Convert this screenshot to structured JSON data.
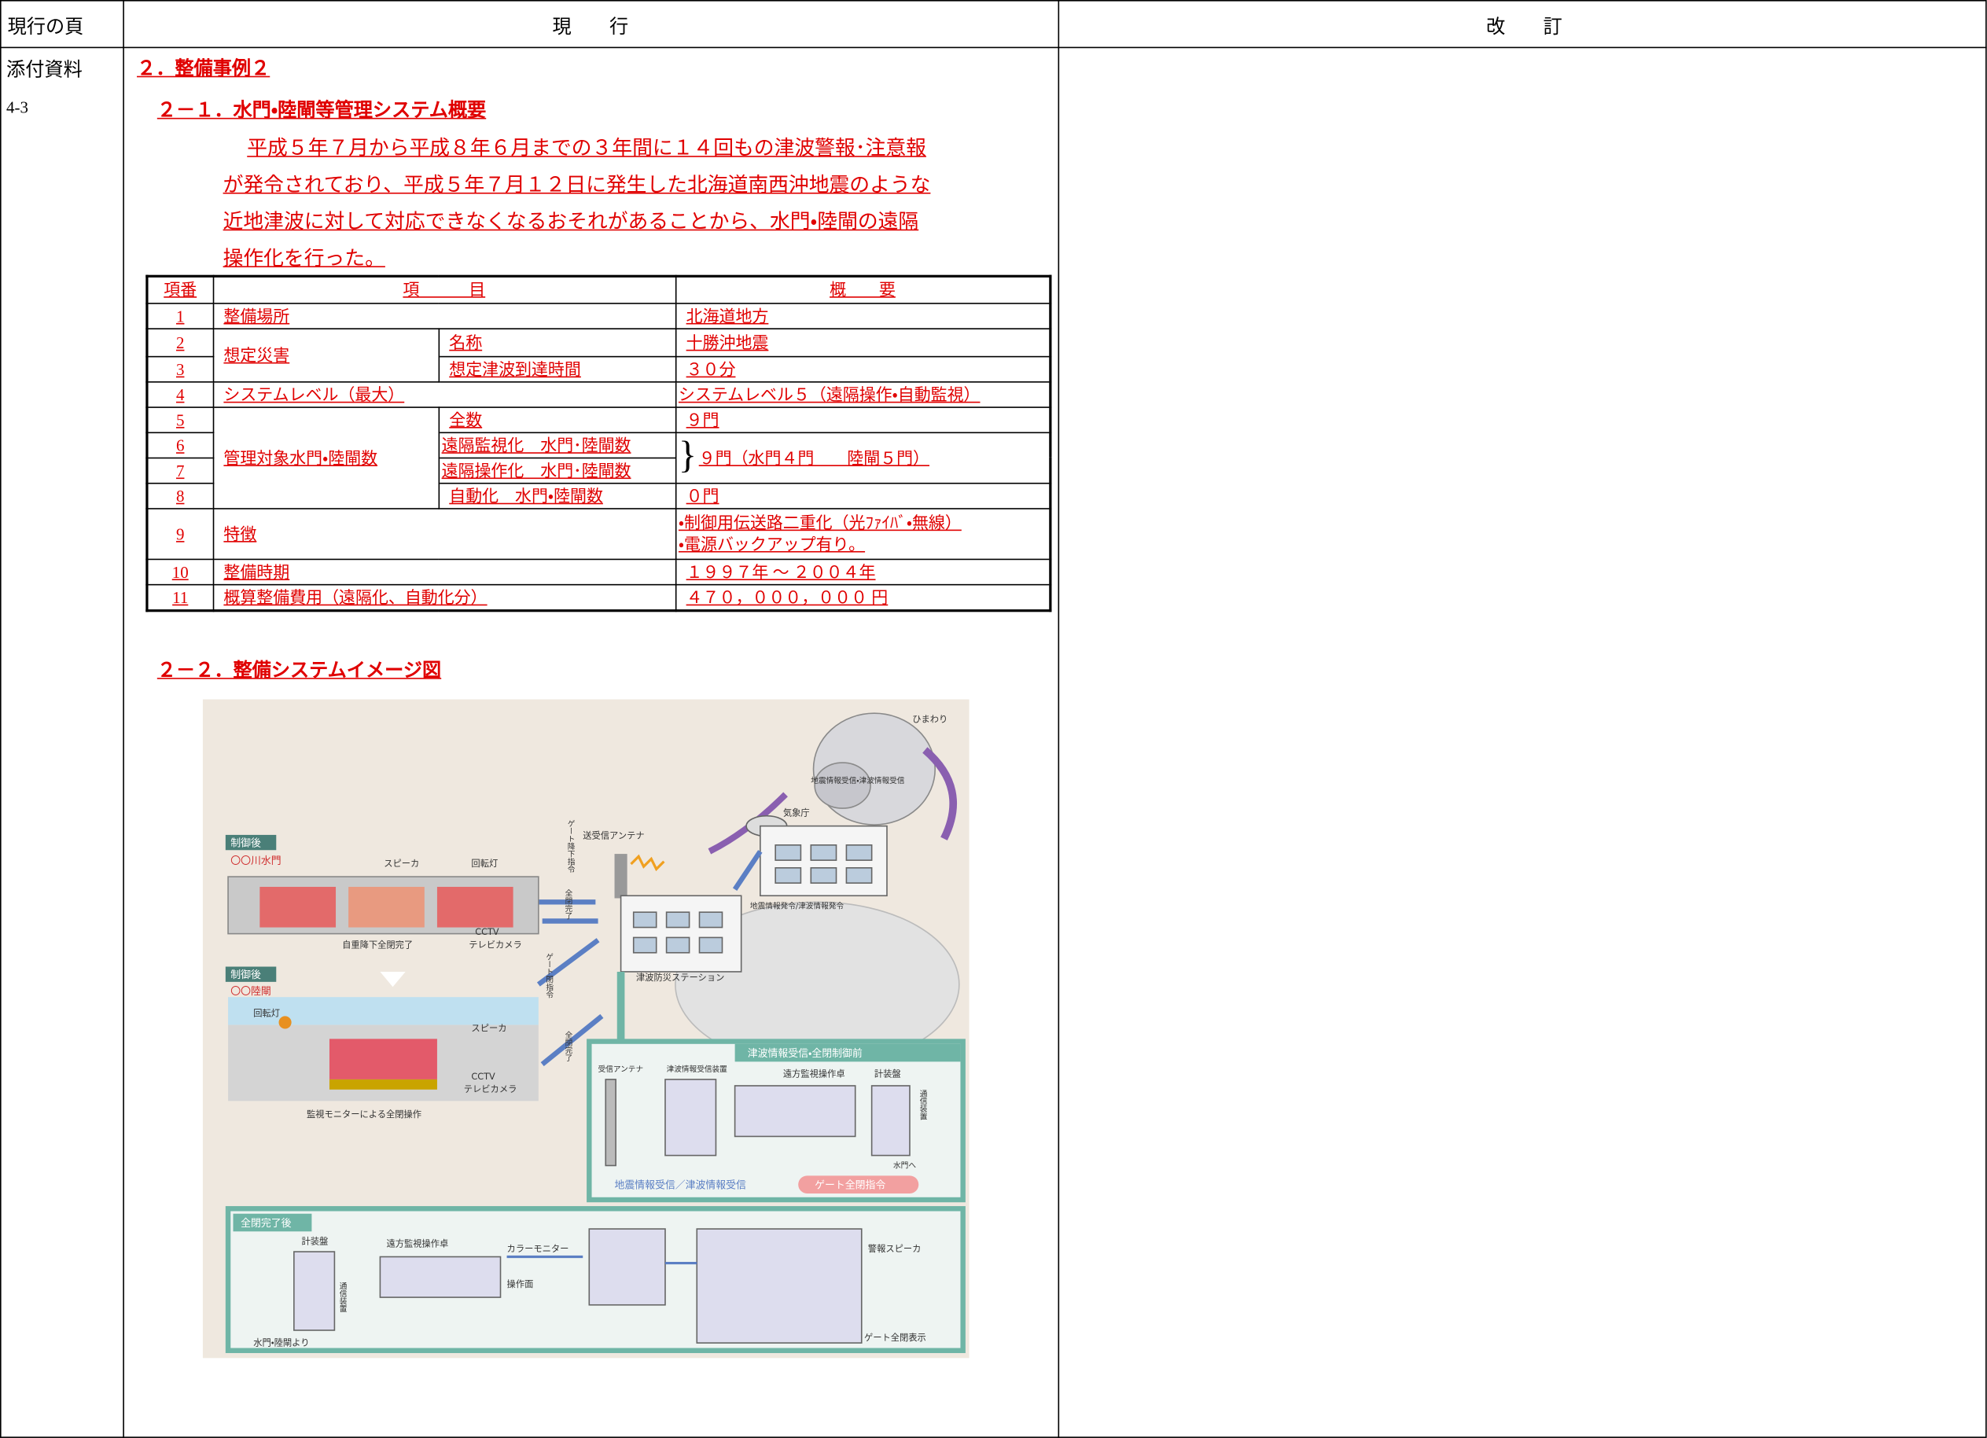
{
  "header": {
    "current_page": "現行の頁",
    "current": "現　　行",
    "revised": "改　　訂"
  },
  "page_ref": {
    "label": "添付資料",
    "number": "4-3"
  },
  "section": {
    "title": "２．整備事例２",
    "subsection_1": "２－１．水門・陸閘等管理システム概要",
    "paragraph": [
      "平成５年７月から平成８年６月までの３年間に１４回もの津波警報･注意報",
      "が発令されており、平成５年７月１２日に発生した北海道南西沖地震のような",
      "近地津波に対して対応できなくなるおそれがあることから、水門・陸閘の遠隔",
      "操作化を行った。"
    ],
    "table": {
      "header": [
        "項番",
        "項　　　目",
        "概　　要"
      ],
      "rows": [
        [
          1,
          "整備場所",
          "北海道地方"
        ],
        [
          2,
          "想定災害",
          "名称",
          "十勝沖地震"
        ],
        [
          3,
          "想定津波到達時間",
          "３０分"
        ],
        [
          4,
          "システムレベル（最大）",
          "システムレベル５（遠隔操作・自動監視）"
        ],
        [
          5,
          "管理対象水門・陸閘数",
          "全数",
          "９門"
        ],
        [
          6,
          "遠隔監視化　水門･陸閘数",
          "９門（水門４門　　陸閘５門）"
        ],
        [
          7,
          "遠隔操作化　水門･陸閘数"
        ],
        [
          8,
          "自動化　水門・陸閘数",
          "０門"
        ],
        [
          9,
          "特徴",
          [
            "・制御用伝送路二重化（光ﾌｧｲﾊﾞ・無線）",
            "・電源バックアップ有り。"
          ]
        ],
        [
          10,
          "整備時期",
          "１９９７年 ～ ２００４年"
        ],
        [
          11,
          "概算整備費用（遠隔化、自動化分）",
          "４７０，０００，０００ 円"
        ]
      ]
    },
    "subsection_2": "２－２．整備システムイメージ図"
  },
  "diagram": {
    "labels": [
      "ひまわり",
      "地震情報受信・津波情報受信",
      "気象庁",
      "送受信アンテナ",
      "ゲート降下指令",
      "地震情報発令/津波情報発令",
      "制御後",
      "〇〇川水門",
      "スピーカ",
      "回転灯",
      "自重降下全閉完了",
      "CCTV",
      "テレビカメラ",
      "全閉完了",
      "津波防災ステーション",
      "ゲート閉指令",
      "制御後",
      "〇〇陸閘",
      "回転灯",
      "スピーカ",
      "全閉完了",
      "CCTV",
      "テレビカメラ",
      "監視モニターによる全閉操作",
      "津波情報受信・全閉制御前",
      "受信アンテナ",
      "津波情報受信装置",
      "遠方監視操作卓",
      "計装盤",
      "通信装置",
      "水門へ",
      "地震情報受信／津波情報受信",
      "ゲート全閉指令",
      "全閉完了後",
      "計装盤",
      "遠方監視操作卓",
      "カラーモニター",
      "操作面",
      "警報スピーカ",
      "通信装置",
      "ゲート全閉表示",
      "水門・陸閘より"
    ]
  }
}
